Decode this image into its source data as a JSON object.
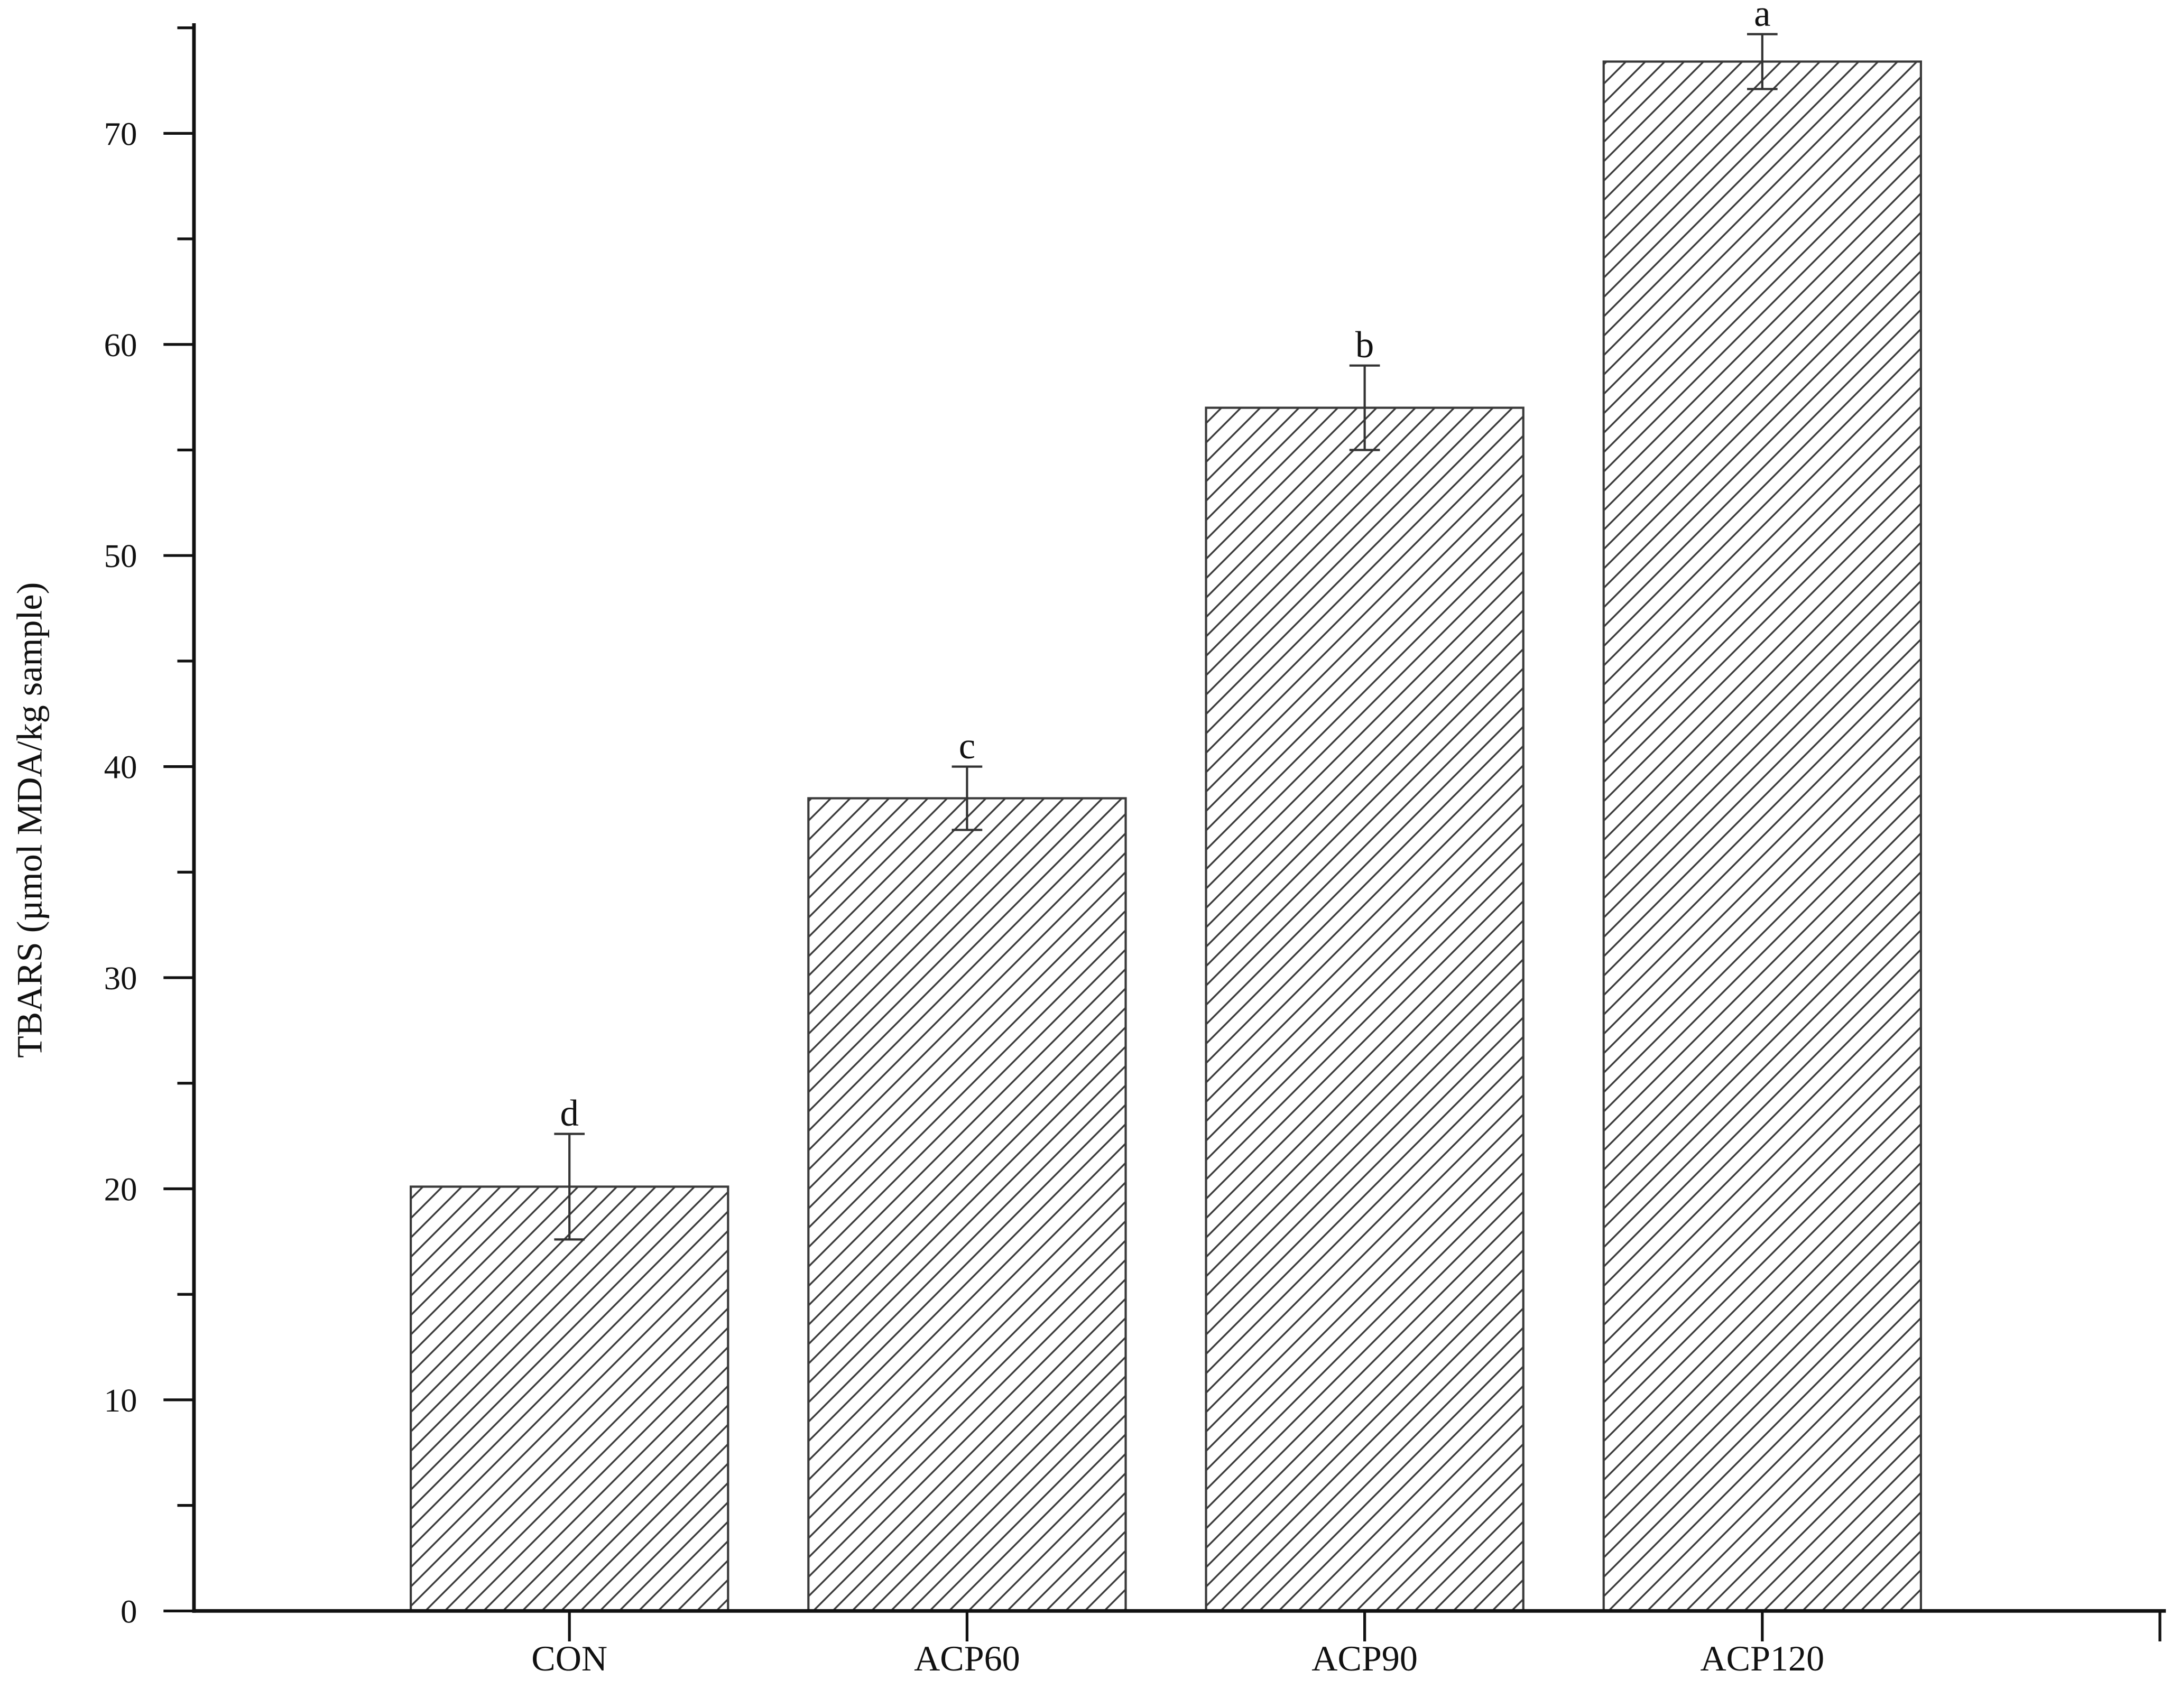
{
  "chart_data": {
    "type": "bar",
    "title": "",
    "xlabel": "",
    "ylabel": "TBARS (µmol MDA/kg sample)",
    "categories": [
      "CON",
      "ACP60",
      "ACP90",
      "ACP120"
    ],
    "values": [
      20.1,
      38.5,
      57.0,
      73.4
    ],
    "error_bars": [
      2.5,
      1.5,
      2.0,
      1.3
    ],
    "significance_letters": [
      "d",
      "c",
      "b",
      "a"
    ],
    "ylim": [
      0,
      75
    ],
    "yticks": [
      0,
      10,
      20,
      30,
      40,
      50,
      60,
      70
    ],
    "grid": false,
    "colors": {
      "axis": "#111111",
      "bar_outline": "#3a3a3a",
      "hatch": "#3a3a3a",
      "error_bar": "#333333"
    }
  }
}
